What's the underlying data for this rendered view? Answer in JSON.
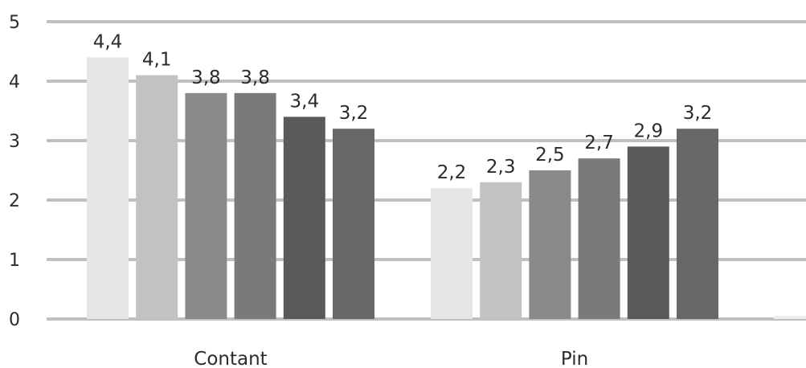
{
  "chart_data": {
    "type": "bar",
    "categories": [
      "Contant",
      "Pin"
    ],
    "series": [
      {
        "values": [
          4.4,
          2.2
        ],
        "labels": [
          "4,4",
          "2,2"
        ],
        "color": "#e6e6e6"
      },
      {
        "values": [
          4.1,
          2.3
        ],
        "labels": [
          "4,1",
          "2,3"
        ],
        "color": "#c2c2c2"
      },
      {
        "values": [
          3.8,
          2.5
        ],
        "labels": [
          "3,8",
          "2,5"
        ],
        "color": "#8a8a8a"
      },
      {
        "values": [
          3.8,
          2.7
        ],
        "labels": [
          "3,8",
          "2,7"
        ],
        "color": "#7a7a7a"
      },
      {
        "values": [
          3.4,
          2.9
        ],
        "labels": [
          "3,4",
          "2,9"
        ],
        "color": "#5a5a5a"
      },
      {
        "values": [
          3.2,
          3.2
        ],
        "labels": [
          "3,2",
          "3,2"
        ],
        "color": "#686868"
      }
    ],
    "yticks": [
      "0",
      "1",
      "2",
      "3",
      "4",
      "5"
    ],
    "ylim": [
      0,
      5
    ],
    "grid": true,
    "title": "",
    "xlabel": "",
    "ylabel": ""
  }
}
